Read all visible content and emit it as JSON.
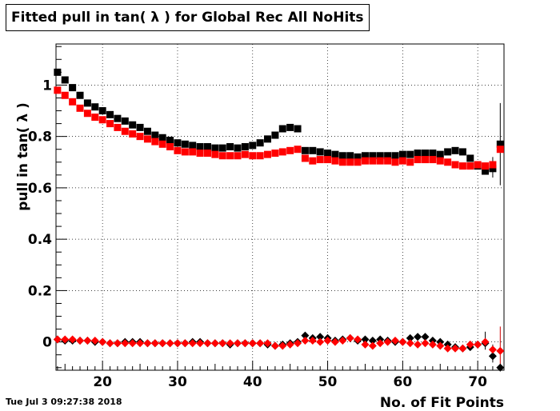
{
  "title": "Fitted pull in tan( λ ) for Global Rec All NoHits",
  "timestamp": "Tue Jul  3 09:27:38 2018",
  "chart_data": {
    "type": "scatter",
    "title": "Fitted pull in tan( λ ) for Global Rec All NoHits",
    "xlabel": "No. of Fit Points",
    "ylabel": "pull in tan( λ )",
    "xlim": [
      13.8,
      73.5
    ],
    "ylim": [
      -0.11,
      1.16
    ],
    "xticks": [
      20,
      30,
      40,
      50,
      60,
      70
    ],
    "yticks": [
      0,
      0.2,
      0.4,
      0.6,
      0.8,
      1
    ],
    "grid": true,
    "colors": {
      "black": "#000000",
      "red": "#ff0000"
    },
    "x": [
      14,
      15,
      16,
      17,
      18,
      19,
      20,
      21,
      22,
      23,
      24,
      25,
      26,
      27,
      28,
      29,
      30,
      31,
      32,
      33,
      34,
      35,
      36,
      37,
      38,
      39,
      40,
      41,
      42,
      43,
      44,
      45,
      46,
      47,
      48,
      49,
      50,
      51,
      52,
      53,
      54,
      55,
      56,
      57,
      58,
      59,
      60,
      61,
      62,
      63,
      64,
      65,
      66,
      67,
      68,
      69,
      70,
      71,
      72,
      73
    ],
    "series": [
      {
        "marker": "square",
        "color": "#000000",
        "values": [
          1.05,
          1.02,
          0.99,
          0.96,
          0.93,
          0.915,
          0.9,
          0.885,
          0.87,
          0.86,
          0.845,
          0.835,
          0.82,
          0.805,
          0.795,
          0.785,
          0.775,
          0.77,
          0.765,
          0.76,
          0.76,
          0.755,
          0.755,
          0.76,
          0.755,
          0.76,
          0.765,
          0.775,
          0.79,
          0.805,
          0.83,
          0.835,
          0.83,
          0.745,
          0.745,
          0.74,
          0.735,
          0.73,
          0.725,
          0.725,
          0.72,
          0.725,
          0.725,
          0.725,
          0.725,
          0.725,
          0.73,
          0.73,
          0.735,
          0.735,
          0.735,
          0.73,
          0.74,
          0.745,
          0.74,
          0.715,
          0.685,
          0.665,
          0.675,
          0.77
        ]
      },
      {
        "marker": "square",
        "color": "#ff0000",
        "values": [
          0.98,
          0.96,
          0.935,
          0.91,
          0.89,
          0.875,
          0.865,
          0.85,
          0.835,
          0.82,
          0.81,
          0.8,
          0.79,
          0.78,
          0.77,
          0.76,
          0.745,
          0.74,
          0.74,
          0.735,
          0.735,
          0.73,
          0.725,
          0.725,
          0.725,
          0.73,
          0.725,
          0.725,
          0.73,
          0.735,
          0.74,
          0.745,
          0.75,
          0.715,
          0.705,
          0.71,
          0.71,
          0.705,
          0.7,
          0.7,
          0.7,
          0.705,
          0.705,
          0.705,
          0.705,
          0.7,
          0.705,
          0.7,
          0.71,
          0.71,
          0.71,
          0.705,
          0.7,
          0.69,
          0.685,
          0.685,
          0.69,
          0.685,
          0.69,
          0.75
        ]
      },
      {
        "marker": "diamond",
        "color": "#000000",
        "values": [
          0.01,
          0.005,
          0.005,
          0.005,
          0.005,
          0.0,
          0.0,
          -0.005,
          -0.005,
          0.0,
          0.0,
          0.0,
          -0.005,
          -0.005,
          -0.005,
          -0.005,
          -0.005,
          -0.005,
          0.0,
          0.0,
          -0.005,
          -0.005,
          -0.005,
          -0.01,
          -0.005,
          -0.005,
          -0.005,
          -0.005,
          -0.01,
          -0.015,
          -0.01,
          -0.005,
          0.0,
          0.025,
          0.015,
          0.02,
          0.015,
          0.005,
          0.01,
          0.015,
          0.005,
          0.01,
          0.005,
          0.01,
          0.005,
          0.0,
          0.0,
          0.015,
          0.02,
          0.02,
          0.005,
          0.0,
          -0.01,
          -0.02,
          -0.025,
          -0.02,
          -0.01,
          -0.005,
          -0.055,
          -0.1
        ]
      },
      {
        "marker": "diamond",
        "color": "#ff0000",
        "values": [
          0.01,
          0.01,
          0.01,
          0.005,
          0.005,
          0.005,
          0.0,
          -0.005,
          -0.005,
          -0.005,
          -0.005,
          -0.005,
          -0.005,
          -0.005,
          -0.005,
          -0.005,
          -0.005,
          -0.005,
          -0.005,
          -0.005,
          -0.005,
          -0.005,
          -0.005,
          -0.005,
          -0.005,
          -0.005,
          -0.005,
          -0.005,
          -0.005,
          -0.015,
          -0.015,
          -0.01,
          -0.005,
          0.005,
          0.005,
          0.0,
          0.005,
          0.0,
          0.005,
          0.015,
          0.01,
          -0.01,
          -0.015,
          -0.005,
          0.0,
          0.005,
          0.0,
          -0.005,
          -0.01,
          -0.005,
          -0.01,
          -0.015,
          -0.025,
          -0.025,
          -0.025,
          -0.01,
          -0.01,
          0.0,
          -0.03,
          -0.035
        ]
      }
    ]
  }
}
